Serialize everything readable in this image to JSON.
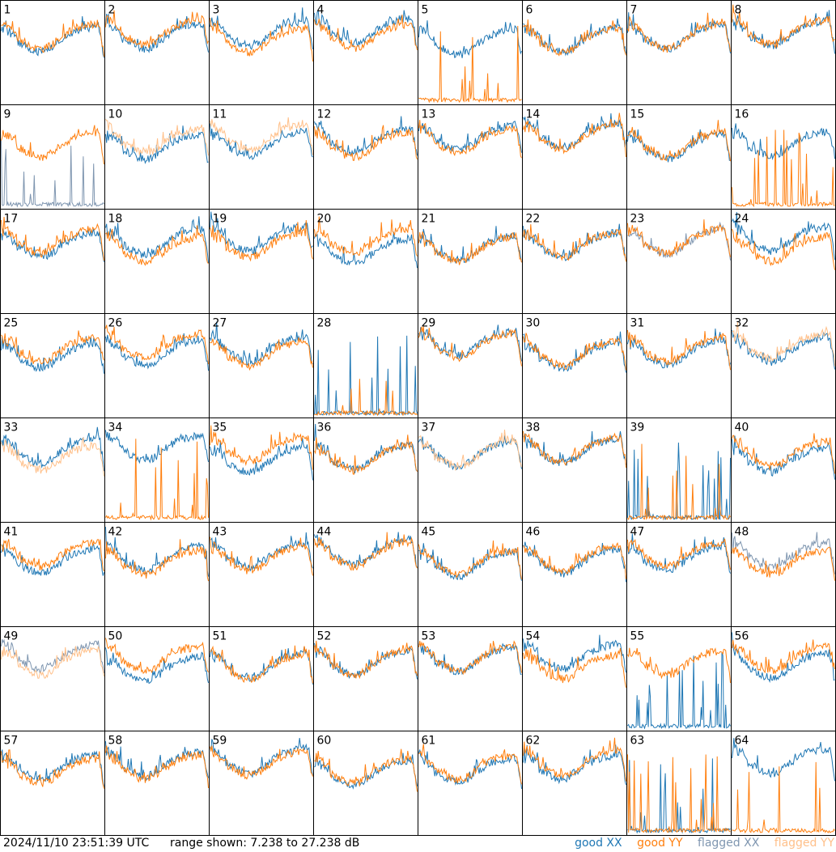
{
  "chart_data": {
    "type": "line",
    "title": "",
    "grid": "8x8 panels",
    "panels": [
      "1",
      "2",
      "3",
      "4",
      "5",
      "6",
      "7",
      "8",
      "9",
      "10",
      "11",
      "12",
      "13",
      "14",
      "15",
      "16",
      "17",
      "18",
      "19",
      "20",
      "21",
      "22",
      "23",
      "24",
      "25",
      "26",
      "27",
      "28",
      "29",
      "30",
      "31",
      "32",
      "33",
      "34",
      "35",
      "36",
      "37",
      "38",
      "39",
      "40",
      "41",
      "42",
      "43",
      "44",
      "45",
      "46",
      "47",
      "48",
      "49",
      "50",
      "51",
      "52",
      "53",
      "54",
      "55",
      "56",
      "57",
      "58",
      "59",
      "60",
      "61",
      "62",
      "63",
      "64"
    ],
    "ylim": [
      7.238,
      27.238
    ],
    "series": [
      {
        "name": "good XX",
        "color": "#1f77b4"
      },
      {
        "name": "good YY",
        "color": "#ff7f0e"
      },
      {
        "name": "flagged XX",
        "color": "#7f96b0"
      },
      {
        "name": "flagged YY",
        "color": "#ffc08a"
      }
    ],
    "panel_series_state": {
      "flagged_yy": [
        "10",
        "11",
        "32",
        "33",
        "37",
        "49"
      ],
      "flagged_xx": [
        "9",
        "23",
        "48",
        "49"
      ],
      "low_xx": [
        "9",
        "28",
        "39",
        "55",
        "63"
      ],
      "low_yy": [
        "5",
        "16",
        "28",
        "34",
        "39",
        "63",
        "64"
      ]
    }
  },
  "footer": {
    "timestamp": "2024/11/10 23:51:39 UTC",
    "range": "range shown: 7.238 to 27.238 dB",
    "legend": [
      "good XX",
      "good YY",
      "flagged XX",
      "flagged YY"
    ]
  }
}
